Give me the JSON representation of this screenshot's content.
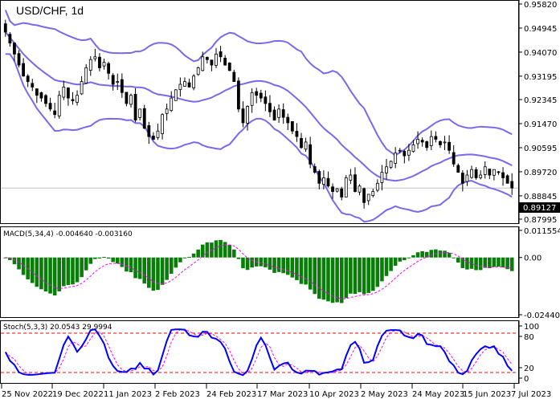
{
  "header": {
    "symbol_title": "USD/CHF, 1d"
  },
  "price_axis": {
    "ticks": [
      "0.95820",
      "0.94945",
      "0.94070",
      "0.93195",
      "0.92345",
      "0.91470",
      "0.90595",
      "0.89720",
      "0.88845",
      "0.87995"
    ],
    "current_price": "0.89127"
  },
  "macd": {
    "label": "MACD(5,34,4) -0.004640 -0.003160",
    "ticks": [
      "0.011554",
      "0.00",
      "-0.024407"
    ]
  },
  "stoch": {
    "label": "Stoch(5,3,3) 20.0543 29.9994",
    "ticks": [
      "100",
      "80",
      "20",
      "0"
    ]
  },
  "time_axis": {
    "labels": [
      "25 Nov 2022",
      "19 Dec 2022",
      "11 Jan 2023",
      "2 Feb 2023",
      "24 Feb 2023",
      "17 Mar 2023",
      "10 Apr 2023",
      "2 May 2023",
      "24 May 2023",
      "15 Jun 2023",
      "7 Jul 2023"
    ]
  },
  "colors": {
    "bollinger": "#7b68ee",
    "candle": "#000000",
    "macd_hist": "#087d08",
    "macd_signal": "#ff00ff",
    "stoch_main": "#0000ff",
    "stoch_signal": "#ff00ff",
    "stoch_levels": "#ff0000",
    "price_line": "#c0c0c0"
  },
  "chart_data": [
    {
      "type": "candlestick",
      "title": "USD/CHF, 1d",
      "indicator": "Bollinger Bands",
      "xlabel": "",
      "ylabel": "Price",
      "ylim": [
        0.87995,
        0.9582
      ],
      "x": [
        "25 Nov 2022",
        "19 Dec 2022",
        "11 Jan 2023",
        "2 Feb 2023",
        "24 Feb 2023",
        "17 Mar 2023",
        "10 Apr 2023",
        "2 May 2023",
        "24 May 2023",
        "15 Jun 2023",
        "7 Jul 2023"
      ],
      "close_approx": [
        0.948,
        0.944,
        0.94,
        0.936,
        0.932,
        0.93,
        0.928,
        0.925,
        0.924,
        0.922,
        0.92,
        0.918,
        0.925,
        0.928,
        0.924,
        0.923,
        0.925,
        0.93,
        0.935,
        0.938,
        0.939,
        0.935,
        0.937,
        0.933,
        0.929,
        0.93,
        0.926,
        0.922,
        0.925,
        0.916,
        0.92,
        0.913,
        0.91,
        0.909,
        0.912,
        0.918,
        0.92,
        0.924,
        0.927,
        0.929,
        0.93,
        0.928,
        0.932,
        0.935,
        0.939,
        0.938,
        0.936,
        0.94,
        0.939,
        0.936,
        0.934,
        0.93,
        0.92,
        0.915,
        0.921,
        0.926,
        0.925,
        0.924,
        0.922,
        0.919,
        0.916,
        0.92,
        0.917,
        0.915,
        0.912,
        0.91,
        0.906,
        0.908,
        0.9,
        0.897,
        0.893,
        0.895,
        0.892,
        0.89,
        0.891,
        0.888,
        0.895,
        0.896,
        0.89,
        0.892,
        0.886,
        0.889,
        0.89,
        0.893,
        0.897,
        0.899,
        0.901,
        0.904,
        0.905,
        0.903,
        0.905,
        0.907,
        0.909,
        0.908,
        0.906,
        0.91,
        0.909,
        0.907,
        0.908,
        0.905,
        0.9,
        0.897,
        0.893,
        0.896,
        0.898,
        0.895,
        0.896,
        0.899,
        0.896,
        0.898,
        0.897,
        0.895,
        0.893,
        0.8913
      ],
      "current": 0.89127
    },
    {
      "type": "bar",
      "title": "MACD(5,34,4)",
      "values_label": {
        "macd": -0.00464,
        "signal": -0.00316
      },
      "ylim": [
        -0.024407,
        0.011554
      ],
      "zero_line": 0.0
    },
    {
      "type": "line",
      "title": "Stoch(5,3,3)",
      "values_label": {
        "main": 20.0543,
        "signal": 29.9994
      },
      "ylim": [
        0,
        100
      ],
      "levels": [
        20,
        80
      ]
    }
  ]
}
